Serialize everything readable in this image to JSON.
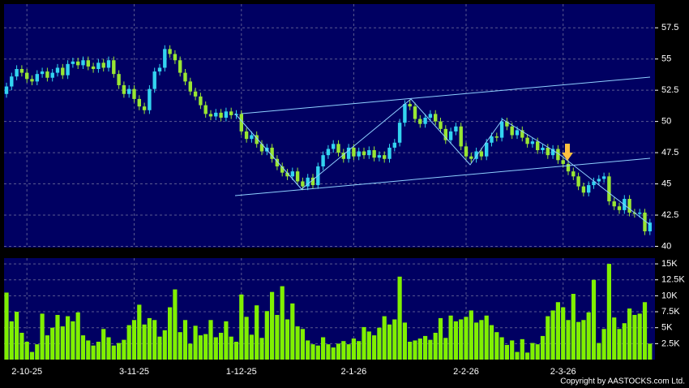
{
  "chart_data": {
    "type": "candlestick",
    "categories": [
      null,
      null,
      null,
      null,
      "2-10-25",
      null,
      null,
      null,
      null,
      null,
      null,
      null,
      null,
      null,
      null,
      null,
      null,
      null,
      null,
      null,
      null,
      null,
      null,
      null,
      null,
      "3-11-25",
      null,
      null,
      null,
      null,
      null,
      null,
      null,
      null,
      null,
      null,
      null,
      null,
      null,
      null,
      null,
      null,
      null,
      null,
      null,
      null,
      "1-12-25",
      null,
      null,
      null,
      null,
      null,
      null,
      null,
      null,
      null,
      null,
      null,
      null,
      null,
      null,
      null,
      null,
      null,
      null,
      null,
      null,
      null,
      "2-1-26",
      null,
      null,
      null,
      null,
      null,
      null,
      null,
      null,
      null,
      null,
      null,
      null,
      null,
      null,
      null,
      null,
      null,
      null,
      null,
      null,
      null,
      "2-2-26",
      null,
      null,
      null,
      null,
      null,
      null,
      null,
      null,
      null,
      null,
      null,
      null,
      null,
      null,
      null,
      null,
      null,
      null,
      "2-3-26",
      null,
      null,
      null,
      null,
      null,
      null,
      null,
      null,
      null,
      null,
      null,
      null,
      null,
      null,
      null,
      null,
      null
    ],
    "open": [
      52.2,
      52.8,
      53.6,
      54.2,
      53.9,
      53.4,
      53.2,
      53.8,
      54.0,
      53.5,
      53.9,
      54.3,
      53.7,
      54.6,
      54.8,
      54.5,
      54.9,
      54.4,
      54.2,
      54.7,
      54.3,
      54.9,
      53.8,
      52.9,
      52.2,
      52.6,
      51.8,
      51.2,
      50.9,
      52.6,
      54.0,
      54.3,
      55.8,
      55.4,
      54.9,
      53.9,
      53.2,
      52.4,
      52.0,
      51.3,
      50.6,
      50.4,
      50.7,
      50.3,
      50.8,
      50.5,
      50.6,
      49.2,
      48.6,
      48.9,
      48.2,
      47.6,
      47.9,
      47.0,
      46.4,
      45.9,
      45.6,
      46.0,
      45.2,
      44.8,
      45.5,
      44.9,
      46.4,
      47.3,
      47.8,
      48.2,
      47.5,
      47.0,
      47.9,
      47.2,
      47.6,
      47.3,
      47.7,
      47.1,
      47.3,
      47.0,
      47.9,
      48.3,
      49.9,
      51.4,
      51.2,
      50.2,
      49.8,
      50.3,
      50.6,
      50.0,
      49.4,
      48.5,
      49.2,
      49.6,
      48.0,
      47.2,
      47.0,
      47.6,
      47.2,
      48.3,
      48.8,
      48.7,
      50.0,
      49.6,
      48.9,
      49.3,
      48.7,
      48.2,
      48.4,
      47.7,
      47.9,
      47.3,
      47.8,
      46.9,
      46.6,
      46.0,
      45.6,
      44.8,
      44.3,
      44.9,
      45.2,
      45.4,
      45.6,
      43.6,
      43.2,
      42.9,
      43.8,
      42.7,
      42.6,
      42.7,
      41.2
    ],
    "high": [
      53.1,
      53.9,
      54.5,
      54.5,
      54.2,
      53.7,
      54.1,
      54.3,
      54.3,
      54.2,
      54.6,
      54.6,
      54.9,
      55.1,
      55.1,
      55.2,
      55.2,
      54.7,
      55.0,
      55.0,
      55.2,
      55.2,
      54.1,
      53.2,
      52.9,
      52.9,
      52.1,
      51.5,
      52.9,
      54.3,
      54.6,
      56.1,
      56.1,
      55.7,
      55.2,
      54.2,
      53.5,
      52.7,
      52.3,
      51.6,
      50.9,
      51.0,
      51.0,
      51.1,
      51.1,
      50.9,
      50.9,
      49.5,
      49.2,
      49.2,
      48.5,
      48.2,
      48.2,
      47.3,
      46.7,
      46.2,
      46.3,
      46.3,
      45.5,
      45.8,
      45.8,
      46.7,
      47.6,
      48.1,
      48.5,
      48.5,
      47.8,
      48.2,
      48.2,
      47.9,
      47.9,
      48.0,
      48.0,
      47.6,
      47.6,
      48.2,
      48.6,
      50.2,
      51.7,
      51.7,
      51.5,
      50.5,
      50.6,
      50.9,
      50.9,
      50.3,
      49.7,
      49.5,
      49.9,
      49.9,
      48.3,
      47.5,
      47.9,
      47.9,
      48.6,
      49.1,
      49.1,
      50.3,
      50.3,
      49.9,
      49.6,
      49.6,
      49.0,
      48.7,
      48.7,
      48.2,
      48.2,
      48.1,
      48.1,
      47.2,
      46.9,
      46.3,
      45.9,
      45.1,
      45.2,
      45.5,
      45.7,
      45.9,
      45.9,
      43.9,
      43.5,
      44.1,
      44.1,
      43.0,
      43.0,
      43.0,
      42.2
    ],
    "low": [
      51.9,
      52.5,
      53.3,
      53.6,
      53.1,
      52.9,
      52.9,
      53.5,
      53.2,
      53.2,
      53.6,
      53.4,
      53.4,
      54.3,
      54.2,
      54.2,
      54.1,
      53.9,
      53.9,
      54.0,
      54.0,
      53.5,
      52.6,
      51.9,
      51.9,
      51.5,
      50.9,
      50.6,
      50.6,
      52.3,
      53.7,
      54.0,
      55.1,
      54.6,
      53.6,
      52.9,
      52.1,
      51.7,
      51.0,
      50.3,
      50.1,
      50.1,
      50.0,
      50.0,
      50.2,
      50.2,
      48.9,
      48.3,
      48.3,
      47.9,
      47.3,
      47.3,
      46.7,
      46.1,
      45.6,
      45.3,
      45.3,
      44.9,
      44.5,
      44.5,
      44.6,
      44.6,
      46.1,
      47.0,
      47.5,
      47.2,
      46.7,
      46.7,
      46.9,
      46.9,
      47.0,
      47.0,
      46.8,
      46.8,
      46.7,
      46.7,
      47.6,
      48.0,
      49.6,
      50.9,
      49.9,
      49.5,
      49.5,
      50.0,
      49.7,
      49.1,
      48.2,
      48.2,
      48.9,
      47.7,
      46.9,
      46.7,
      46.7,
      46.9,
      46.9,
      48.0,
      48.4,
      48.4,
      49.3,
      48.6,
      48.6,
      48.4,
      47.9,
      47.9,
      47.4,
      47.4,
      47.0,
      47.0,
      46.6,
      46.3,
      45.7,
      45.3,
      44.5,
      44.0,
      44.0,
      44.6,
      44.9,
      45.1,
      43.3,
      42.9,
      42.6,
      42.6,
      42.4,
      42.3,
      42.3,
      40.9,
      40.9
    ],
    "close": [
      52.8,
      53.6,
      54.2,
      53.9,
      53.4,
      53.2,
      53.8,
      54.0,
      53.5,
      53.9,
      54.3,
      53.7,
      54.6,
      54.8,
      54.5,
      54.9,
      54.4,
      54.2,
      54.7,
      54.3,
      54.9,
      53.8,
      52.9,
      52.2,
      52.6,
      51.8,
      51.2,
      50.9,
      52.6,
      54.0,
      54.3,
      55.8,
      55.4,
      54.9,
      53.9,
      53.2,
      52.4,
      52.0,
      51.3,
      50.6,
      50.4,
      50.7,
      50.3,
      50.8,
      50.5,
      50.6,
      49.2,
      48.6,
      48.9,
      48.2,
      47.6,
      47.9,
      47.0,
      46.4,
      45.9,
      45.6,
      46.0,
      45.2,
      44.8,
      45.5,
      44.9,
      46.4,
      47.3,
      47.8,
      48.2,
      47.5,
      47.0,
      47.9,
      47.2,
      47.6,
      47.3,
      47.7,
      47.1,
      47.3,
      47.0,
      47.9,
      48.3,
      49.9,
      51.4,
      51.2,
      50.2,
      49.8,
      50.3,
      50.6,
      50.0,
      49.4,
      48.5,
      49.2,
      49.6,
      48.0,
      47.2,
      47.0,
      47.6,
      47.2,
      48.3,
      48.8,
      48.7,
      50.0,
      49.6,
      48.9,
      49.3,
      48.7,
      48.2,
      48.4,
      47.7,
      47.9,
      47.3,
      47.8,
      46.9,
      46.6,
      46.0,
      45.6,
      44.8,
      44.3,
      44.9,
      45.2,
      45.4,
      45.6,
      43.6,
      43.2,
      42.9,
      43.8,
      42.7,
      42.6,
      42.7,
      41.2,
      41.9
    ],
    "up_color": "#33d4f0",
    "down_color": "#99e633",
    "ylim": [
      39.9,
      59.4
    ],
    "yticks": [
      40,
      42.5,
      45,
      47.5,
      50,
      52.5,
      55,
      57.5
    ],
    "grid": true,
    "volume": {
      "values": [
        10500,
        6000,
        7500,
        4200,
        2800,
        1200,
        2400,
        7200,
        3800,
        5000,
        7000,
        5200,
        6800,
        6000,
        7400,
        3800,
        3000,
        2200,
        2800,
        4800,
        3500,
        2200,
        2600,
        3100,
        5400,
        6200,
        8600,
        5500,
        6500,
        6200,
        3600,
        4600,
        8200,
        11000,
        4300,
        6200,
        2500,
        5300,
        3800,
        4000,
        6200,
        3500,
        4200,
        6000,
        3600,
        2800,
        10200,
        6700,
        3900,
        8500,
        3400,
        7600,
        10600,
        7000,
        11500,
        6300,
        8800,
        5200,
        4800,
        3000,
        2400,
        2200,
        3500,
        2400,
        1900,
        2500,
        2900,
        2400,
        3300,
        2900,
        5100,
        4400,
        3800,
        5000,
        6800,
        5500,
        6300,
        13000,
        5800,
        2800,
        3000,
        3300,
        3700,
        3100,
        4200,
        6500,
        3400,
        6900,
        6000,
        6300,
        6700,
        7700,
        5800,
        6200,
        6900,
        5400,
        4300,
        3500,
        2300,
        3000,
        1200,
        3200,
        1100,
        2600,
        2400,
        3700,
        6800,
        7700,
        9000,
        8200,
        6200,
        10300,
        5900,
        6200,
        7400,
        12500,
        2600,
        4800,
        15000,
        6600,
        4800,
        5700,
        8000,
        7000,
        7200,
        9000,
        2500
      ],
      "color": "#80f000",
      "ylim": [
        0,
        15900
      ],
      "yticks": [
        {
          "value": 2500,
          "label": "2.5K"
        },
        {
          "value": 5000,
          "label": "5K"
        },
        {
          "value": 7500,
          "label": "7.5K"
        },
        {
          "value": 10000,
          "label": "10K"
        },
        {
          "value": 12500,
          "label": "12.5K"
        },
        {
          "value": 15000,
          "label": "15K"
        }
      ]
    }
  },
  "copyright": "Copyright by AASTOCKS.com Ltd."
}
